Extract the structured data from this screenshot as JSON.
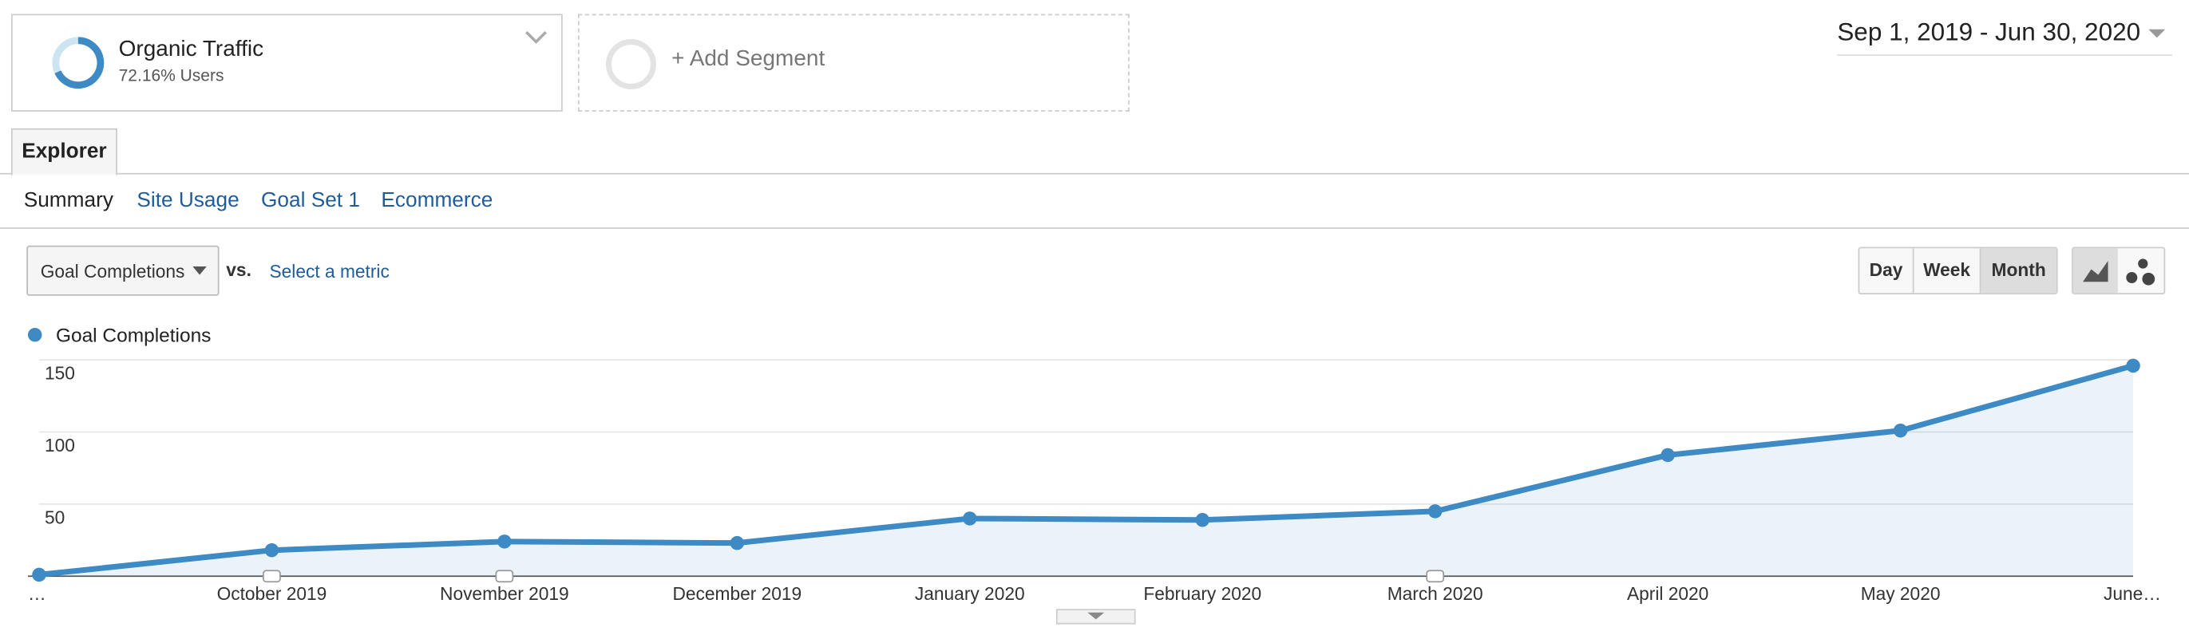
{
  "segment": {
    "name": "Organic Traffic",
    "detail": "72.16% Users",
    "add": "+ Add Segment"
  },
  "date_range": "Sep 1, 2019 - Jun 30, 2020",
  "tab": "Explorer",
  "subtabs": [
    "Summary",
    "Site Usage",
    "Goal Set 1",
    "Ecommerce"
  ],
  "controls": {
    "metric": "Goal Completions",
    "vs": "vs.",
    "select": "Select a metric",
    "periods": [
      "Day",
      "Week",
      "Month"
    ]
  },
  "chart_data": {
    "type": "line",
    "categories": [
      "…",
      "October 2019",
      "November 2019",
      "December 2019",
      "January 2020",
      "February 2020",
      "March 2020",
      "April 2020",
      "May 2020",
      "June…"
    ],
    "series": [
      {
        "name": "Goal Completions",
        "color": "#3d8ac4",
        "values": [
          1,
          18,
          24,
          23,
          40,
          39,
          45,
          84,
          101,
          146
        ]
      }
    ],
    "ylim": [
      0,
      150
    ],
    "yticks": [
      50,
      100,
      150
    ],
    "grid": true
  }
}
